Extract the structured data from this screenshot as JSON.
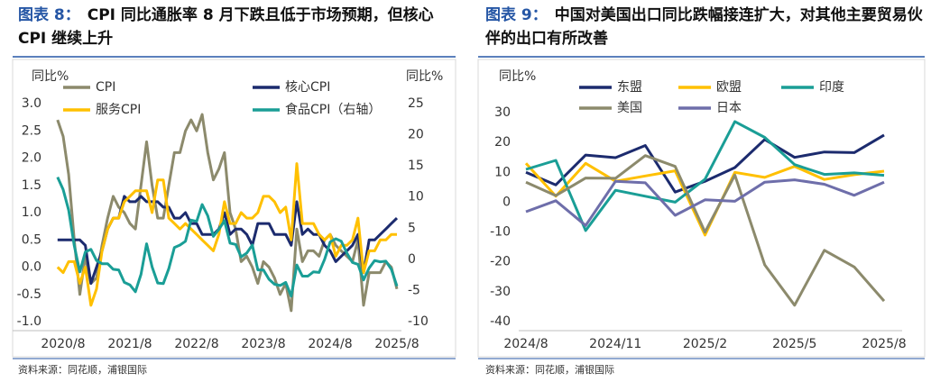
{
  "chart_data": [
    {
      "type": "line",
      "label": "图表 8：",
      "title": "CPI 同比通胀率 8 月下跌且低于市场预期，但核心 CPI 继续上升",
      "ylabel": "同比%",
      "y2label": "同比%",
      "categories": [
        null,
        "2020/8",
        null,
        null,
        null,
        null,
        null,
        null,
        null,
        null,
        null,
        null,
        null,
        "2021/8",
        null,
        null,
        null,
        null,
        null,
        null,
        null,
        null,
        null,
        null,
        null,
        "2022/8",
        null,
        null,
        null,
        null,
        null,
        null,
        null,
        null,
        null,
        null,
        null,
        "2023/8",
        null,
        null,
        null,
        null,
        null,
        null,
        null,
        null,
        null,
        null,
        null,
        "2024/8",
        null,
        null,
        null,
        null,
        null,
        null,
        null,
        null,
        null,
        null,
        null,
        "2025/8"
      ],
      "ylim": [
        -1,
        3
      ],
      "yticks": [
        {
          "value": -1,
          "label": "-1.0"
        },
        {
          "value": -0.5,
          "label": "-0.5"
        },
        {
          "value": 0,
          "label": "0.0"
        },
        {
          "value": 0.5,
          "label": "0.5"
        },
        {
          "value": 1,
          "label": "1.0"
        },
        {
          "value": 1.5,
          "label": "1.5"
        },
        {
          "value": 2,
          "label": "2.0"
        },
        {
          "value": 2.5,
          "label": "2.5"
        },
        {
          "value": 3,
          "label": "3.0"
        }
      ],
      "y2lim": [
        -10,
        25
      ],
      "y2ticks": [
        -10,
        -5,
        0,
        5,
        10,
        15,
        20,
        25
      ],
      "series": [
        {
          "name": "CPI",
          "color": "#8c8a6c",
          "values": [
            2.7,
            2.4,
            1.7,
            0.5,
            -0.5,
            0.2,
            -0.3,
            -0.2,
            0.4,
            0.9,
            1.3,
            1.1,
            1.0,
            0.8,
            0.7,
            1.5,
            2.3,
            1.5,
            0.9,
            0.9,
            1.5,
            2.1,
            2.1,
            2.5,
            2.7,
            2.5,
            2.8,
            2.1,
            1.6,
            1.8,
            2.1,
            1.0,
            0.7,
            0.1,
            0.2,
            0.0,
            -0.3,
            0.1,
            0.0,
            -0.2,
            -0.5,
            -0.3,
            -0.8,
            0.7,
            0.1,
            0.3,
            0.3,
            0.2,
            0.5,
            0.6,
            0.4,
            0.3,
            0.2,
            0.1,
            0.5,
            -0.7,
            -0.1,
            -0.1,
            -0.1,
            0.1,
            0.0,
            -0.4
          ]
        },
        {
          "name": "核心CPI",
          "color": "#1c2b6e",
          "values": [
            0.5,
            0.5,
            0.5,
            0.5,
            0.5,
            0.4,
            -0.3,
            0.0,
            0.3,
            0.7,
            0.9,
            0.9,
            1.3,
            1.2,
            1.2,
            1.3,
            1.2,
            1.2,
            1.2,
            1.1,
            1.1,
            0.9,
            0.9,
            1.0,
            0.8,
            0.8,
            0.6,
            0.6,
            0.6,
            0.7,
            1.0,
            0.6,
            0.7,
            0.7,
            0.6,
            0.4,
            0.8,
            0.8,
            0.8,
            0.6,
            0.6,
            0.6,
            0.4,
            1.2,
            0.6,
            0.7,
            0.6,
            0.6,
            0.4,
            0.3,
            0.1,
            0.2,
            0.3,
            0.4,
            0.6,
            -0.1,
            0.5,
            0.5,
            0.6,
            0.7,
            0.8,
            0.9
          ]
        },
        {
          "name": "服务CPI",
          "color": "#ffc000",
          "values": [
            0.0,
            -0.1,
            0.1,
            0.1,
            -0.3,
            0.0,
            -0.7,
            -0.4,
            0.3,
            0.7,
            0.9,
            0.9,
            1.2,
            1.3,
            1.4,
            1.4,
            1.4,
            1.0,
            1.6,
            1.6,
            0.9,
            0.8,
            0.7,
            0.8,
            0.7,
            0.6,
            0.5,
            0.4,
            0.3,
            0.6,
            1.2,
            0.8,
            0.8,
            1.0,
            0.9,
            0.9,
            1.0,
            1.3,
            1.3,
            1.2,
            1.0,
            1.1,
            0.5,
            1.9,
            0.8,
            0.8,
            0.8,
            0.6,
            0.5,
            0.6,
            0.2,
            0.4,
            0.4,
            0.5,
            0.9,
            -0.1,
            0.3,
            0.3,
            0.5,
            0.5,
            0.6,
            0.6
          ]
        },
        {
          "name": "食品CPI（右轴）",
          "color": "#1a9e96",
          "axis": "y2",
          "values": [
            13.2,
            11.2,
            7.9,
            2.2,
            -2.0,
            1.2,
            1.6,
            -0.2,
            -0.7,
            -0.7,
            -1.6,
            -1.7,
            -3.7,
            -4.1,
            -5.2,
            -2.4,
            2.5,
            -1.2,
            -3.8,
            -3.9,
            -1.5,
            1.9,
            2.3,
            2.9,
            6.3,
            6.1,
            8.8,
            7.0,
            3.7,
            4.8,
            6.2,
            2.6,
            2.4,
            0.4,
            1.0,
            2.3,
            -1.7,
            -1.7,
            -3.2,
            -4.0,
            -4.2,
            -3.7,
            -5.9,
            -0.9,
            -2.7,
            -2.7,
            -2.0,
            -2.1,
            0.0,
            2.8,
            3.3,
            2.9,
            1.0,
            -0.5,
            -0.8,
            -3.3,
            -1.4,
            -0.2,
            -0.4,
            -0.3,
            -1.6,
            -4.3
          ]
        }
      ],
      "source": "资料来源：同花顺，浦银国际"
    },
    {
      "type": "line",
      "label": "图表 9：",
      "title": "中国对美国出口同比跌幅接连扩大，对其他主要贸易伙伴的出口有所改善",
      "ylabel": "同比%",
      "categories": [
        "2024/8",
        null,
        null,
        "2024/11",
        null,
        null,
        "2025/2",
        null,
        null,
        "2025/5",
        null,
        null,
        "2025/8"
      ],
      "ylim": [
        -40,
        30
      ],
      "yticks": [
        -40,
        -30,
        -20,
        -10,
        0,
        10,
        20,
        30
      ],
      "series": [
        {
          "name": "东盟",
          "color": "#1c2b6e",
          "values": [
            10,
            5.8,
            15.8,
            14.9,
            19,
            3.4,
            7,
            11.6,
            21,
            15,
            16.8,
            16.6,
            22.5
          ]
        },
        {
          "name": "欧盟",
          "color": "#ffc000",
          "values": [
            13,
            2,
            13,
            7,
            8.8,
            10.5,
            -11,
            10,
            8.3,
            12,
            7.6,
            9.2,
            10.4
          ]
        },
        {
          "name": "印度",
          "color": "#1a9e96",
          "values": [
            11,
            14,
            -9.5,
            4,
            2,
            0,
            7.7,
            27,
            21.7,
            12.6,
            9.3,
            9.8,
            9
          ]
        },
        {
          "name": "美国",
          "color": "#8c8a6c",
          "values": [
            6.7,
            2.2,
            8.1,
            8,
            15.6,
            12,
            -10,
            9.1,
            -21,
            -34.5,
            -16.1,
            -21.7,
            -33.1
          ]
        },
        {
          "name": "日本",
          "color": "#6e6eaa",
          "values": [
            -3.2,
            0.5,
            -7.8,
            7,
            6.5,
            -4.4,
            0.8,
            0.3,
            6.7,
            7.5,
            6,
            2.3,
            6.7
          ]
        }
      ],
      "source": "资料来源：同花顺，浦银国际"
    }
  ]
}
